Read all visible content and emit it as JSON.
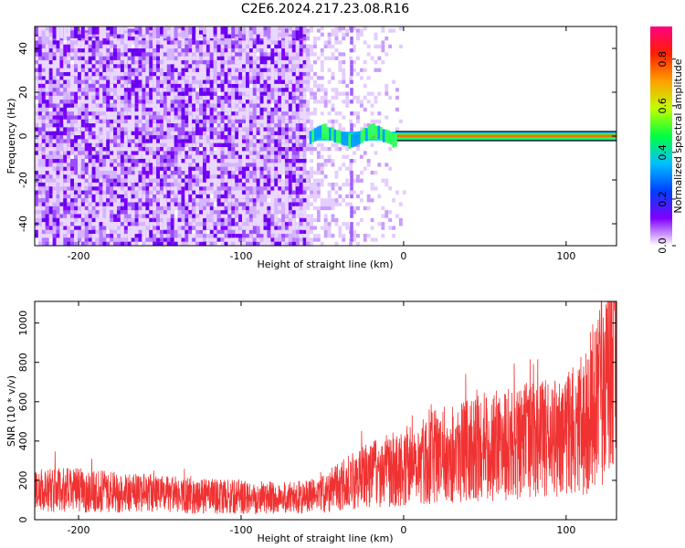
{
  "title": "C2E6.2024.217.23.08.R16",
  "colorbar": {
    "label": "Normalized spectral amplitude",
    "ticks": [
      "0.0",
      "0.2",
      "0.4",
      "0.6",
      "0.8"
    ],
    "range": [
      0,
      0.94
    ],
    "colors": [
      "#ffffff",
      "#8000ff",
      "#0040ff",
      "#00c0ff",
      "#00ff40",
      "#c0ff00",
      "#ffa000",
      "#ff2000",
      "#ff0080"
    ]
  },
  "chart_data": [
    {
      "type": "heatmap",
      "xlabel": "Height of straight line (km)",
      "ylabel": "Frequency (Hz)",
      "xlim": [
        -227,
        131
      ],
      "ylim": [
        -50,
        50
      ],
      "xticks": [
        "-200",
        "-100",
        "0",
        "100"
      ],
      "yticks": [
        "-40",
        "-20",
        "0",
        "20",
        "40"
      ],
      "dense_region_x": [
        -227,
        -60
      ],
      "scatter_region_x": [
        -60,
        0
      ],
      "signal_band": {
        "x_start": -58,
        "x_end": 131,
        "frequency": 0,
        "amplitude": 0.7
      }
    },
    {
      "type": "line",
      "xlabel": "Height of straight line (km)",
      "ylabel": "SNR (10 * v/v)",
      "xlim": [
        -227,
        131
      ],
      "ylim": [
        0,
        1110
      ],
      "xticks": [
        "-200",
        "-100",
        "0",
        "100"
      ],
      "yticks": [
        "0",
        "200",
        "400",
        "600",
        "800",
        "1000"
      ],
      "color": "#f03232",
      "series": [
        {
          "x": [
            -227,
            -200,
            -175,
            -150,
            -125,
            -100,
            -75,
            -60,
            -50,
            -40,
            -30,
            -20,
            -10,
            0,
            10,
            25,
            50,
            75,
            100,
            110,
            120,
            131
          ],
          "values": [
            150,
            150,
            140,
            130,
            120,
            115,
            110,
            115,
            130,
            170,
            200,
            230,
            250,
            270,
            300,
            330,
            370,
            400,
            420,
            480,
            620,
            900
          ]
        }
      ]
    }
  ]
}
